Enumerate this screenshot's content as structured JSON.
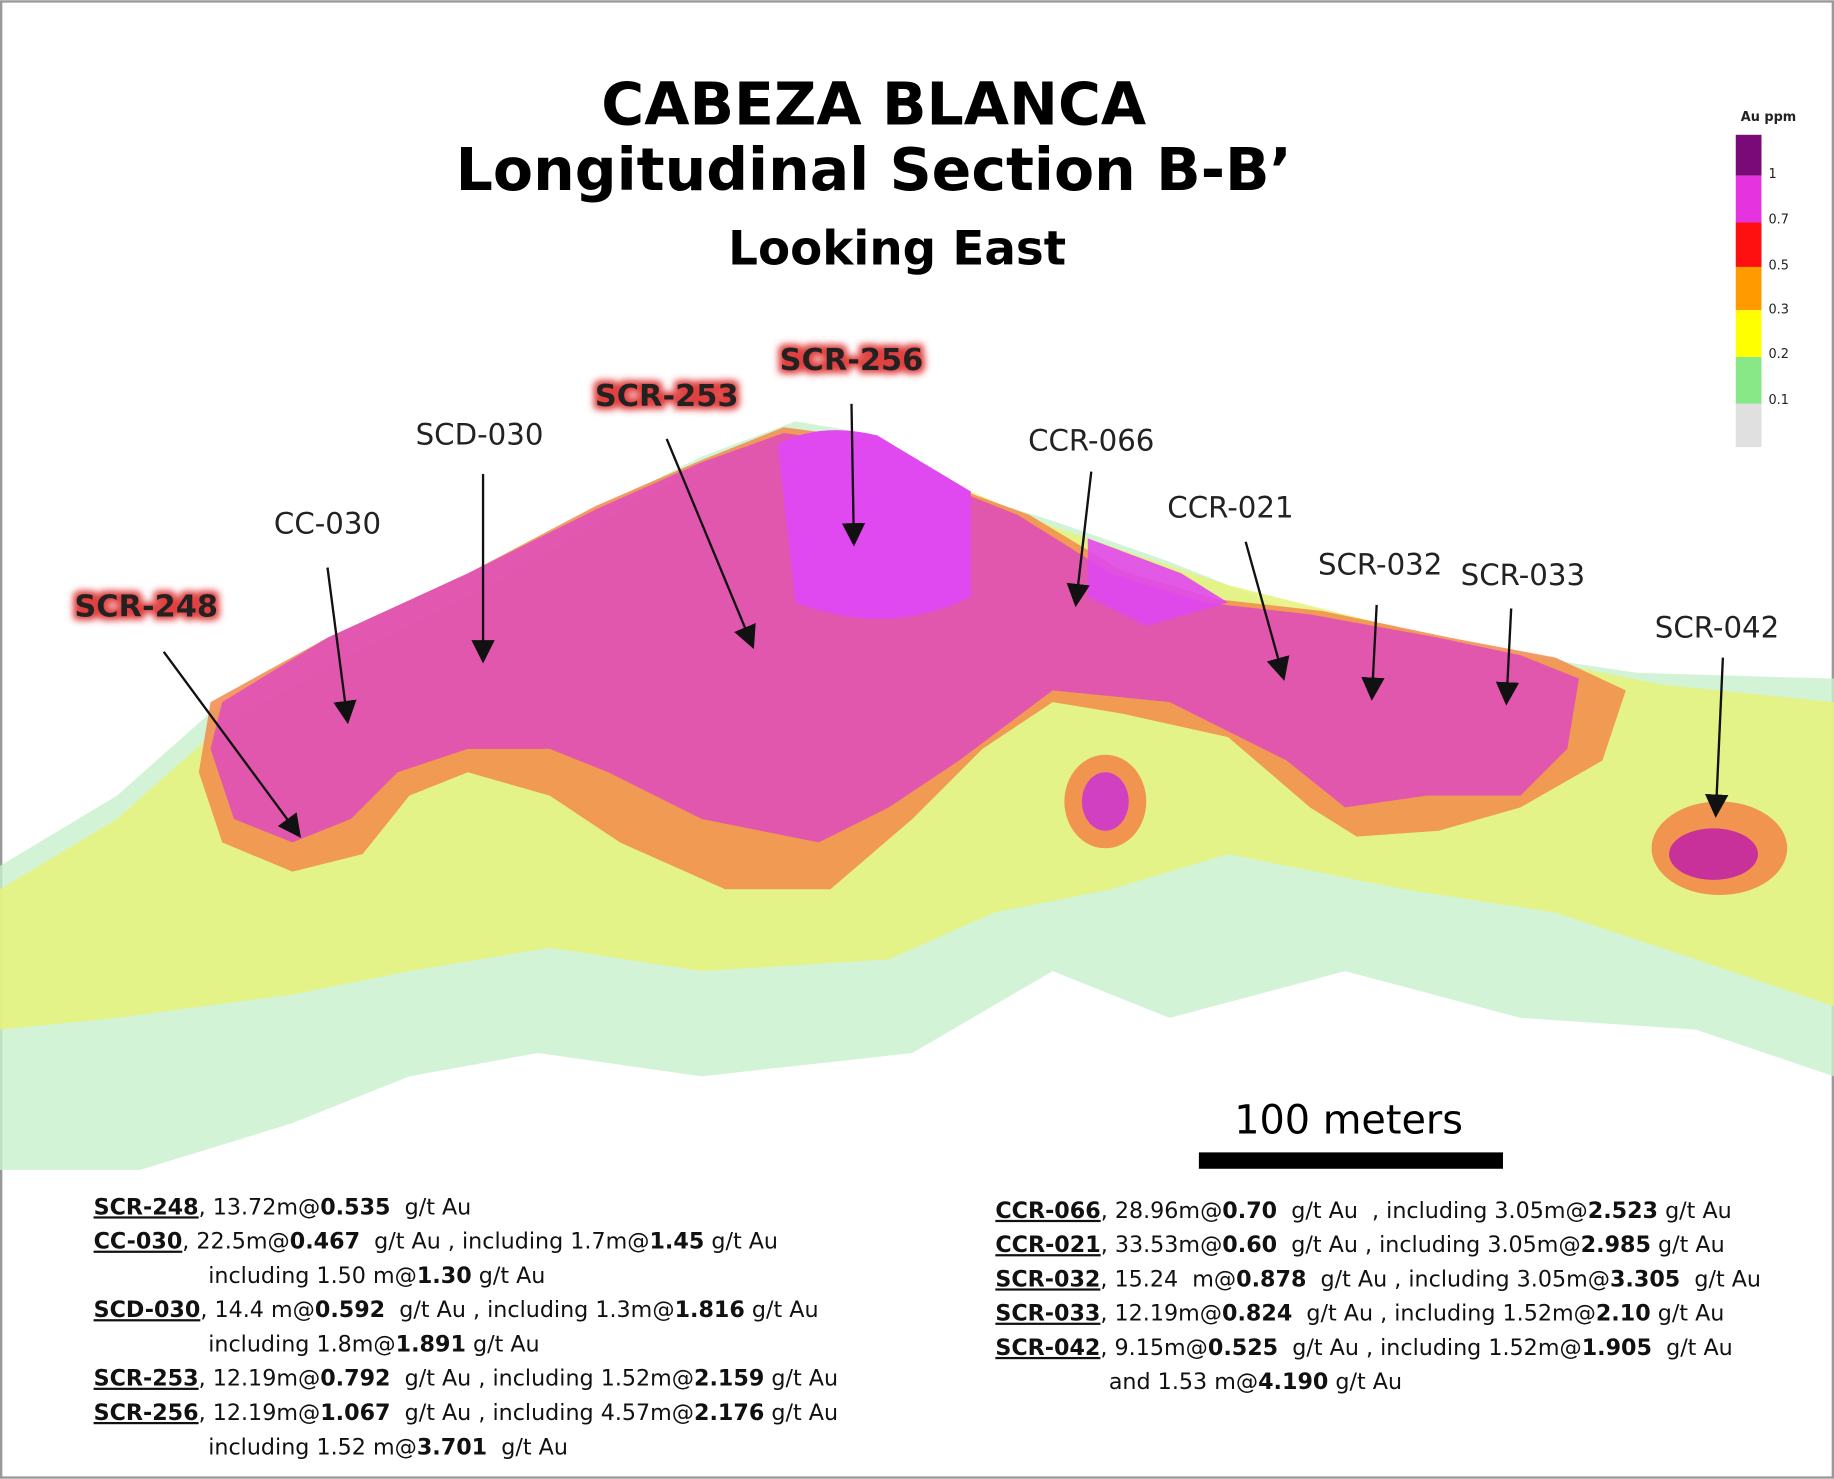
{
  "header": {
    "title": "CABEZA BLANCA",
    "subtitle": "Longitudinal Section B-B’",
    "view": "Looking East"
  },
  "legend": {
    "title": "Au ppm",
    "labels": [
      "1",
      "0.7",
      "0.5",
      "0.3",
      "0.2",
      "0.1"
    ]
  },
  "drill_holes": [
    "SCR-248",
    "CC-030",
    "SCD-030",
    "SCR-253",
    "SCR-256",
    "CCR-066",
    "CCR-021",
    "SCR-032",
    "SCR-033",
    "SCR-042"
  ],
  "scale_bar": "100 meters",
  "intercepts": {
    "left": [
      {
        "hole": "SCR-248",
        "lines": [
          [
            ", 13.72m@",
            "0.535",
            "  g/t Au"
          ]
        ]
      },
      {
        "hole": "CC-030",
        "lines": [
          [
            ", 22.5m@",
            "0.467",
            "  g/t Au , including 1.7m@",
            "1.45",
            " g/t Au"
          ],
          [
            "including 1.50 m@",
            "1.30",
            " g/t Au"
          ]
        ]
      },
      {
        "hole": "SCD-030",
        "lines": [
          [
            ", 14.4 m@",
            "0.592",
            "  g/t Au , including 1.3m@",
            "1.816",
            " g/t Au"
          ],
          [
            "including 1.8m@",
            "1.891",
            " g/t Au"
          ]
        ]
      },
      {
        "hole": "SCR-253",
        "lines": [
          [
            ", 12.19m@",
            "0.792",
            "  g/t Au , including 1.52m@",
            "2.159",
            " g/t Au"
          ]
        ]
      },
      {
        "hole": "SCR-256",
        "lines": [
          [
            ", 12.19m@",
            "1.067",
            "  g/t Au , including 4.57m@",
            "2.176",
            " g/t Au"
          ],
          [
            "including 1.52 m@",
            "3.701",
            "  g/t Au"
          ]
        ]
      }
    ],
    "right": [
      {
        "hole": "CCR-066",
        "lines": [
          [
            ", 28.96m@",
            "0.70",
            "  g/t Au  , including 3.05m@",
            "2.523",
            " g/t Au"
          ]
        ]
      },
      {
        "hole": "CCR-021",
        "lines": [
          [
            ", 33.53m@",
            "0.60",
            "  g/t Au , including 3.05m@",
            "2.985",
            " g/t Au"
          ]
        ]
      },
      {
        "hole": "SCR-032",
        "lines": [
          [
            ", 15.24  m@",
            "0.878",
            "  g/t Au , including 3.05m@",
            "3.305",
            "  g/t Au"
          ]
        ]
      },
      {
        "hole": "SCR-033",
        "lines": [
          [
            ", 12.19m@",
            "0.824",
            "  g/t Au , including 1.52m@",
            "2.10",
            " g/t Au"
          ]
        ]
      },
      {
        "hole": "SCR-042",
        "lines": [
          [
            ", 9.15m@",
            "0.525",
            "  g/t Au , including 1.52m@",
            "1.905",
            "  g/t Au"
          ],
          [
            "and 1.53 m@",
            "4.190",
            " g/t Au"
          ]
        ]
      }
    ]
  }
}
